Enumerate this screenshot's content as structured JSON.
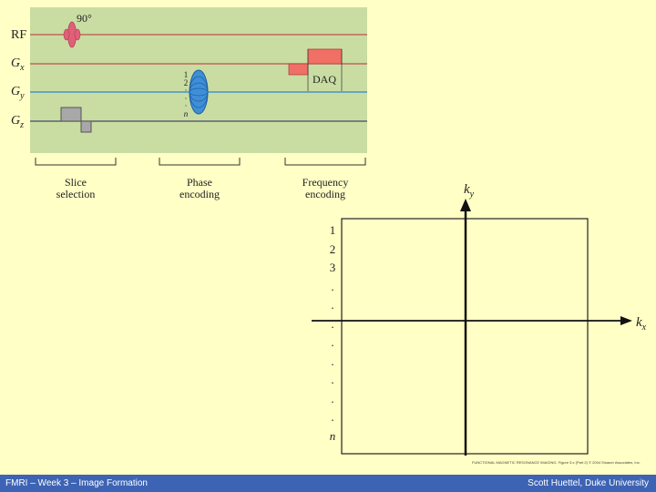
{
  "pulse_sequence": {
    "channels": [
      {
        "id": "rf",
        "label": "RF"
      },
      {
        "id": "gx",
        "label": "G",
        "sub": "x"
      },
      {
        "id": "gy",
        "label": "G",
        "sub": "y"
      },
      {
        "id": "gz",
        "label": "G",
        "sub": "z"
      }
    ],
    "flip_angle": "90°",
    "daq_label": "DAQ",
    "phase_steps": [
      "1",
      "2",
      "·",
      "·",
      "·",
      "n"
    ],
    "groups": [
      {
        "line1": "Slice",
        "line2": "selection"
      },
      {
        "line1": "Phase",
        "line2": "encoding"
      },
      {
        "line1": "Frequency",
        "line2": "encoding"
      }
    ],
    "colors": {
      "background": "#c9dda3",
      "rf_line": "#c0504d",
      "gy_line": "#2e86c8",
      "gz_line": "#4a4a6a",
      "rf_pulse": "#e0607a",
      "phase_lobe": "#3f8fd8",
      "readout": "#f07065",
      "slice_grad": "#a8a8a8"
    }
  },
  "kspace": {
    "ky_label": "k",
    "ky_sub": "y",
    "kx_label": "k",
    "kx_sub": "x",
    "row_labels": [
      "1",
      "2",
      "3",
      ".",
      ".",
      ".",
      ".",
      ".",
      ".",
      ".",
      ".",
      "n"
    ]
  },
  "credit": "FUNCTIONAL MAGNETIC RESONANCE IMAGING, Figure 5.x (Part 2) © 2004 Sinauer Associates, Inc.",
  "footer": {
    "left": "FMRI – Week 3 – Image Formation",
    "right": "Scott Huettel, Duke University"
  }
}
